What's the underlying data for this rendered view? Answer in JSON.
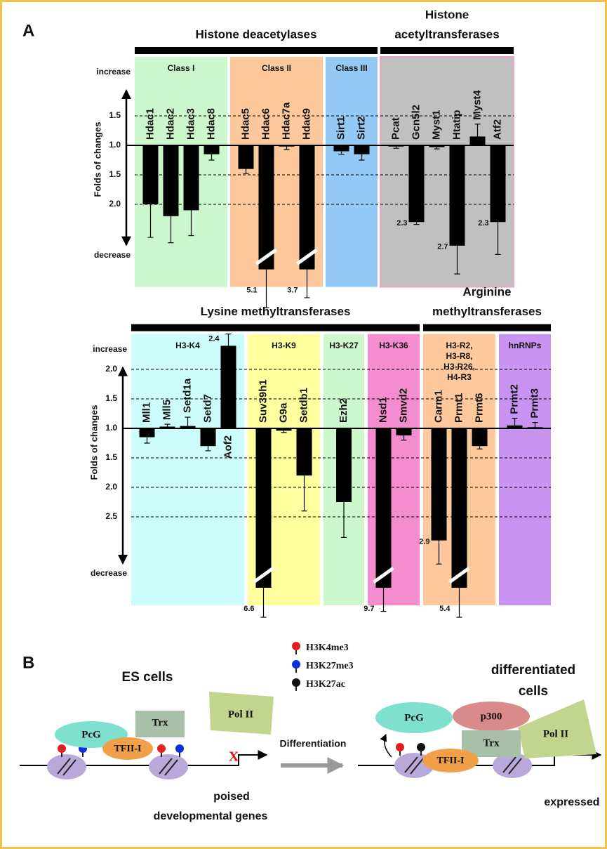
{
  "chart_data": [
    {
      "type": "bar",
      "scale": "mirrored-fold",
      "y_label": "Folds of changes",
      "increase_label": "increase",
      "decrease_label": "decrease",
      "ylim": [
        -3.4,
        2.5
      ],
      "yticks": [
        1.5,
        {
          "value": 1,
          "label": "1.0"
        },
        {
          "value": -1.5,
          "label": "1.5"
        },
        {
          "value": -2,
          "label": "2.0"
        }
      ],
      "grid": true,
      "bar_color": "#000000",
      "sections": [
        {
          "title": [
            "Histone deacetylases"
          ],
          "groups": [
            {
              "name": [
                "Class I"
              ],
              "color": "#ccf7cc",
              "categories": [
                "Hdac1",
                "Hdac2",
                "Hdac3",
                "Hdac8"
              ],
              "values": [
                -2.0,
                -2.2,
                -2.1,
                -1.15
              ],
              "errors": [
                0.56,
                0.45,
                0.43,
                0.1
              ]
            },
            {
              "name": [
                "Class II"
              ],
              "color": "#fdc99c",
              "categories": [
                "Hdac5",
                "Hdac6",
                "Hdac7a",
                "Hdac9"
              ],
              "values": [
                -1.4,
                -5.1,
                -1.02,
                -3.7
              ],
              "errors": [
                0.08,
                0.65,
                0.05,
                0.48
              ],
              "value_labels": [
                null,
                "5.1",
                null,
                "3.7"
              ]
            },
            {
              "name": [
                "Class III"
              ],
              "color": "#94c9f5",
              "categories": [
                "Sirt1",
                "Sirt2"
              ],
              "values": [
                -1.1,
                -1.15
              ],
              "errors": [
                0.05,
                0.1
              ]
            }
          ]
        },
        {
          "title": [
            "Histone",
            "acetyltransferases"
          ],
          "groups": [
            {
              "color": "#c0c0c0",
              "border": "#f0a0c8",
              "categories": [
                "Pcat",
                "Gcn5l2",
                "Myst1",
                "Htatip",
                "Myst4",
                "Atf2"
              ],
              "values": [
                -1.02,
                -2.3,
                -1.03,
                -2.7,
                1.15,
                -2.3
              ],
              "errors": [
                0.03,
                0.04,
                0.03,
                0.48,
                0.21,
                0.55
              ],
              "value_labels": [
                null,
                "2.3",
                null,
                "2.7",
                null,
                "2.3"
              ]
            }
          ]
        }
      ]
    },
    {
      "type": "bar",
      "scale": "mirrored-fold",
      "y_label": "Folds of changes",
      "increase_label": "increase",
      "decrease_label": "decrease",
      "ylim": [
        -4.0,
        2.6
      ],
      "yticks": [
        {
          "value": 2,
          "label": "2.0"
        },
        1.5,
        {
          "value": 1,
          "label": "1.0"
        },
        {
          "value": -1.5,
          "label": "1.5"
        },
        {
          "value": -2,
          "label": "2.0"
        },
        {
          "value": -2.5,
          "label": "2.5"
        }
      ],
      "grid": true,
      "bar_color": "#000000",
      "sections": [
        {
          "title": [
            "Lysine methyltransferases"
          ],
          "groups": [
            {
              "name": [
                "H3-K4"
              ],
              "color": "#ccfcfc",
              "categories": [
                "Mll1",
                "Mll5",
                "Setd1a",
                "Setd7",
                "Aof2"
              ],
              "values": [
                -1.15,
                1.03,
                1.04,
                -1.3,
                2.4
              ],
              "errors": [
                0.1,
                0.04,
                0.15,
                0.08,
                0.2
              ],
              "value_labels": [
                null,
                null,
                null,
                null,
                "2.4"
              ]
            },
            {
              "name": [
                "H3-K9"
              ],
              "color": "#ffff9e",
              "categories": [
                "Suv39h1",
                "G9a",
                "Setdb1"
              ],
              "values": [
                -6.6,
                -1.04,
                -1.8
              ],
              "errors": [
                0.5,
                0.03,
                0.6
              ],
              "value_labels": [
                "6.6",
                null,
                null
              ]
            },
            {
              "name": [
                "H3-K27"
              ],
              "color": "#cdf7cd",
              "categories": [
                "Ezh2"
              ],
              "values": [
                -2.25
              ],
              "errors": [
                0.6
              ]
            },
            {
              "name": [
                "H3-K36"
              ],
              "color": "#f48cd0",
              "categories": [
                "Nsd1",
                "Smvd2"
              ],
              "values": [
                -9.7,
                -1.12
              ],
              "errors": [
                0.4,
                0.08
              ],
              "value_labels": [
                "9.7",
                null
              ]
            }
          ]
        },
        {
          "title": [
            "Arginine",
            "methyltransferases"
          ],
          "groups": [
            {
              "name": [
                "H3-R2,",
                "H3-R8,",
                "H3-R26,",
                "H4-R3"
              ],
              "color": "#fdc99c",
              "categories": [
                "Carm1",
                "Prmt1",
                "Prmt6"
              ],
              "values": [
                -2.9,
                -5.4,
                -1.3
              ],
              "errors": [
                0.4,
                0.5,
                0.05
              ],
              "value_labels": [
                "2.9",
                "5.4",
                null
              ]
            },
            {
              "name": [
                "hnRNPs"
              ],
              "color": "#c993f2",
              "categories": [
                "Prmt2",
                "Prmt3"
              ],
              "values": [
                1.05,
                1.02
              ],
              "errors": [
                0.12,
                0.08
              ]
            }
          ]
        }
      ]
    }
  ],
  "panel_a": {
    "label": "A"
  },
  "panel_b": {
    "label": "B",
    "left": {
      "title": "ES cells",
      "pcg": "PcG",
      "tfii": "TFII-I",
      "trx": "Trx",
      "pol": "Pol II",
      "blocked": "X",
      "caption": [
        "poised",
        "developmental genes"
      ]
    },
    "legend": [
      {
        "label": "H3K4me3",
        "color": "#e02020"
      },
      {
        "label": "H3K27me3",
        "color": "#1030e0"
      },
      {
        "label": "H3K27ac",
        "color": "#111111"
      }
    ],
    "arrow_label": "Differentiation",
    "right": {
      "title": [
        "differentiated",
        "cells"
      ],
      "pcg": "PcG",
      "p300": "p300",
      "trx": "Trx",
      "tfii": "TFII-I",
      "pol": "Pol II",
      "caption": "expressed"
    }
  }
}
